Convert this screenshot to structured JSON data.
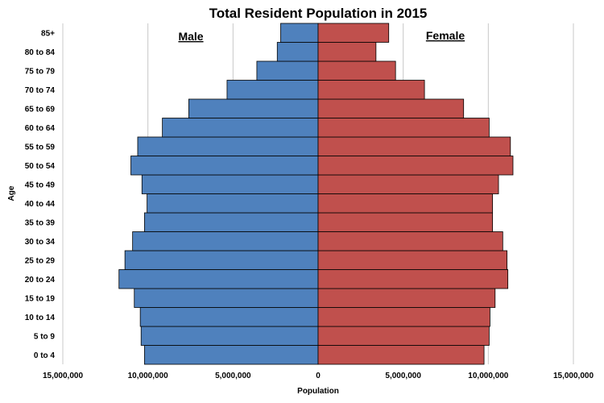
{
  "chart_data": {
    "type": "bar",
    "orientation": "horizontal-pyramid",
    "title": "Total Resident Population in 2015",
    "xlabel": "Population",
    "ylabel": "Age",
    "categories": [
      "0 to 4",
      "5 to 9",
      "10 to 14",
      "15 to 19",
      "20 to 24",
      "25 to 29",
      "30 to 34",
      "35 to 39",
      "40 to 44",
      "45 to 49",
      "50 to 54",
      "55 to 59",
      "60 to 64",
      "65 to 69",
      "70 to 74",
      "75 to 79",
      "80 to 84",
      "85+"
    ],
    "series": [
      {
        "name": "Male",
        "color": "#4F81BD",
        "values": [
          10200000,
          10400000,
          10450000,
          10800000,
          11700000,
          11350000,
          10900000,
          10200000,
          10050000,
          10350000,
          11000000,
          10600000,
          9150000,
          7600000,
          5350000,
          3600000,
          2400000,
          2200000
        ]
      },
      {
        "name": "Female",
        "color": "#C0504D",
        "values": [
          9750000,
          10050000,
          10100000,
          10400000,
          11150000,
          11100000,
          10850000,
          10250000,
          10250000,
          10600000,
          11450000,
          11300000,
          10050000,
          8550000,
          6250000,
          4550000,
          3400000,
          4150000
        ]
      }
    ],
    "xlim": [
      -15000000,
      15000000
    ],
    "xticks": [
      "15,000,000",
      "10,000,000",
      "5,000,000",
      "0",
      "5,000,000",
      "10,000,000",
      "15,000,000"
    ],
    "grid": "vertical",
    "legend": "inside-top"
  }
}
